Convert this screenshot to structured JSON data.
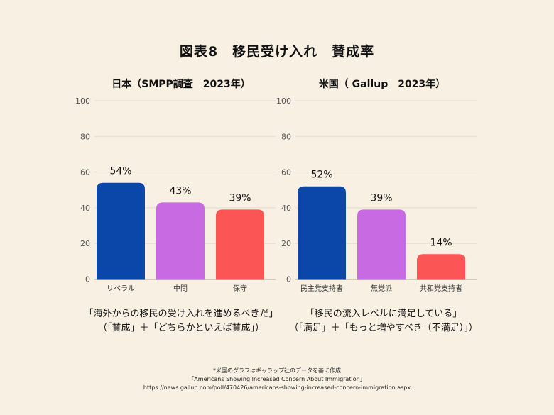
{
  "title": "図表8　移民受け入れ　賛成率",
  "colors": {
    "background": "#f8f0e2",
    "gridline": "#e3dccf"
  },
  "chart_data": [
    {
      "type": "bar",
      "title": "日本（SMPP調査　2023年）",
      "categories": [
        "リベラル",
        "中間",
        "保守"
      ],
      "values": [
        54,
        43,
        39
      ],
      "data_labels": [
        "54%",
        "43%",
        "39%"
      ],
      "colors": [
        "#0a47a8",
        "#c86be2",
        "#fc5555"
      ],
      "ylim": [
        0,
        100
      ],
      "yticks": [
        0,
        20,
        40,
        60,
        80,
        100
      ],
      "grid": true,
      "caption": [
        "「海外からの移民の受け入れを進めるべきだ」",
        "（「賛成」＋「どちらかといえば賛成」）"
      ]
    },
    {
      "type": "bar",
      "title": "米国（ Gallup　2023年）",
      "categories": [
        "民主党支持者",
        "無党派",
        "共和党支持者"
      ],
      "values": [
        52,
        39,
        14
      ],
      "data_labels": [
        "52%",
        "39%",
        "14%"
      ],
      "colors": [
        "#0a47a8",
        "#c86be2",
        "#fc5555"
      ],
      "ylim": [
        0,
        100
      ],
      "yticks": [
        0,
        20,
        40,
        60,
        80,
        100
      ],
      "grid": true,
      "caption": [
        "「移民の流入レベルに満足している」",
        "（「満足」＋「もっと増やすべき（不満足）」）"
      ]
    }
  ],
  "footnote": [
    "*米国のグラフはギャラップ社のデータを基に作成",
    "「Americans Showing Increased Concern About Immigration」",
    "https://news.gallup.com/poll/470426/americans-showing-increased-concern-immigration.aspx"
  ]
}
